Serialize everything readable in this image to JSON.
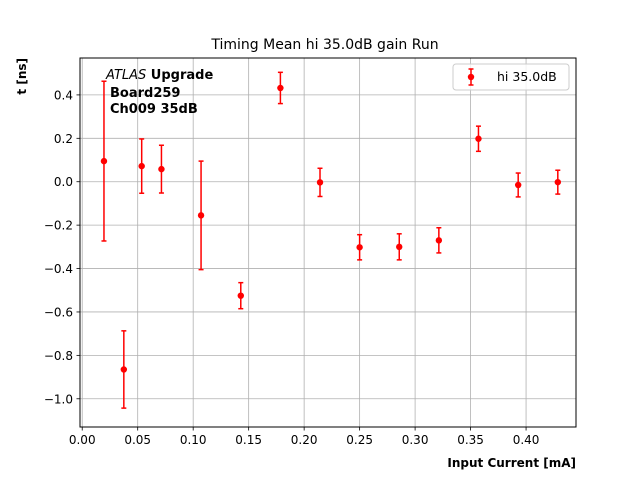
{
  "chart_data": {
    "type": "scatter",
    "title": "Timing Mean hi 35.0dB gain Run",
    "xlabel": "Input Current [mA]",
    "ylabel": "t [ns]",
    "xlim": [
      -0.002,
      0.445
    ],
    "ylim": [
      -1.13,
      0.57
    ],
    "xticks": [
      0.0,
      0.05,
      0.1,
      0.15,
      0.2,
      0.25,
      0.3,
      0.35,
      0.4
    ],
    "xtick_labels": [
      "0.00",
      "0.05",
      "0.10",
      "0.15",
      "0.20",
      "0.25",
      "0.30",
      "0.35",
      "0.40"
    ],
    "yticks": [
      -1.0,
      -0.8,
      -0.6,
      -0.4,
      -0.2,
      0.0,
      0.2,
      0.4
    ],
    "ytick_labels": [
      "−1.0",
      "−0.8",
      "−0.6",
      "−0.4",
      "−0.2",
      "0.0",
      "0.2",
      "0.4"
    ],
    "grid": true,
    "legend_position": "top-right",
    "annotation": {
      "atlas": "ATLAS",
      "upgrade": " Upgrade",
      "line2": "Board259",
      "line3": "Ch009 35dB"
    },
    "series": [
      {
        "name": "hi 35.0dB",
        "color": "#ff0000",
        "x": [
          0.0196,
          0.0375,
          0.0536,
          0.0714,
          0.1071,
          0.1429,
          0.1786,
          0.2143,
          0.25,
          0.2857,
          0.3214,
          0.3571,
          0.3929,
          0.4286
        ],
        "y": [
          0.095,
          -0.865,
          0.072,
          0.058,
          -0.155,
          -0.525,
          0.432,
          -0.003,
          -0.302,
          -0.3,
          -0.27,
          0.198,
          -0.015,
          -0.002
        ],
        "yerr": [
          0.368,
          0.178,
          0.125,
          0.11,
          0.25,
          0.06,
          0.072,
          0.065,
          0.058,
          0.06,
          0.058,
          0.058,
          0.055,
          0.055
        ]
      }
    ]
  }
}
